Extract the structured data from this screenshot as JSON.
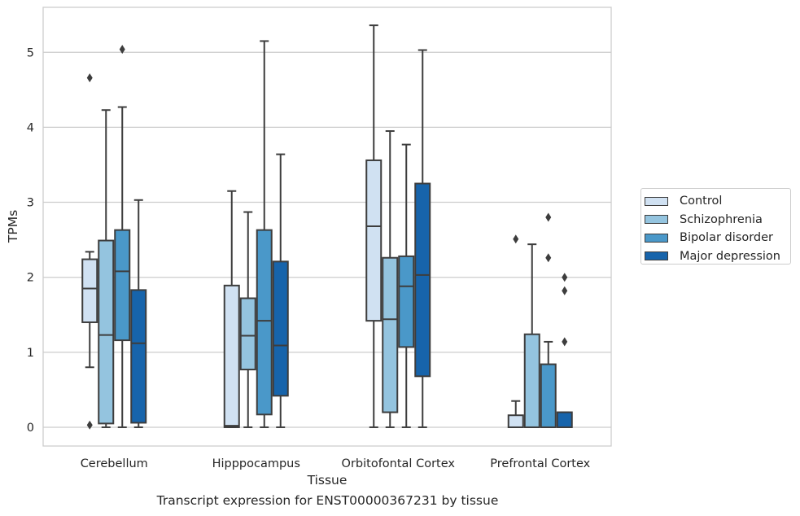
{
  "caption": "Transcript expression for ENST00000367231 by tissue",
  "chart_data": {
    "type": "boxplot",
    "xlabel": "Tissue",
    "ylabel": "TPMs",
    "ylim": [
      -0.25,
      5.6
    ],
    "yticks": [
      0,
      1,
      2,
      3,
      4,
      5
    ],
    "grid": "horizontal",
    "legend_position": "right",
    "categories": [
      "Cerebellum",
      "Hipppocampus",
      "Orbitofontal Cortex",
      "Prefrontal Cortex"
    ],
    "series": [
      {
        "name": "Control",
        "color": "#d0e1f2",
        "boxes": [
          {
            "whislo": 0.8,
            "q1": 1.4,
            "med": 1.85,
            "q3": 2.24,
            "whishi": 2.34,
            "fliers": [
              4.66,
              0.03
            ]
          },
          {
            "whislo": 0.0,
            "q1": 0.0,
            "med": 0.02,
            "q3": 1.89,
            "whishi": 3.15,
            "fliers": []
          },
          {
            "whislo": 0.0,
            "q1": 1.42,
            "med": 2.68,
            "q3": 3.56,
            "whishi": 5.36,
            "fliers": []
          },
          {
            "whislo": 0.0,
            "q1": 0.0,
            "med": 0.0,
            "q3": 0.16,
            "whishi": 0.35,
            "fliers": [
              2.51
            ]
          }
        ]
      },
      {
        "name": "Schizophrenia",
        "color": "#94c4df",
        "boxes": [
          {
            "whislo": 0.0,
            "q1": 0.05,
            "med": 1.23,
            "q3": 2.49,
            "whishi": 4.23,
            "fliers": []
          },
          {
            "whislo": 0.0,
            "q1": 0.77,
            "med": 1.22,
            "q3": 1.72,
            "whishi": 2.87,
            "fliers": []
          },
          {
            "whislo": 0.0,
            "q1": 0.2,
            "med": 1.44,
            "q3": 2.26,
            "whishi": 3.95,
            "fliers": []
          },
          {
            "whislo": 0.0,
            "q1": 0.0,
            "med": 0.0,
            "q3": 1.24,
            "whishi": 2.44,
            "fliers": []
          }
        ]
      },
      {
        "name": "Bipolar disorder",
        "color": "#4a98c9",
        "boxes": [
          {
            "whislo": 0.0,
            "q1": 1.16,
            "med": 2.08,
            "q3": 2.63,
            "whishi": 4.27,
            "fliers": [
              5.04
            ]
          },
          {
            "whislo": 0.0,
            "q1": 0.17,
            "med": 1.42,
            "q3": 2.63,
            "whishi": 5.15,
            "fliers": []
          },
          {
            "whislo": 0.0,
            "q1": 1.07,
            "med": 1.88,
            "q3": 2.28,
            "whishi": 3.77,
            "fliers": []
          },
          {
            "whislo": 0.0,
            "q1": 0.0,
            "med": 0.0,
            "q3": 0.84,
            "whishi": 1.14,
            "fliers": [
              2.8,
              2.26
            ]
          }
        ]
      },
      {
        "name": "Major depression",
        "color": "#1764ab",
        "boxes": [
          {
            "whislo": 0.0,
            "q1": 0.06,
            "med": 1.12,
            "q3": 1.83,
            "whishi": 3.03,
            "fliers": []
          },
          {
            "whislo": 0.0,
            "q1": 0.42,
            "med": 1.09,
            "q3": 2.21,
            "whishi": 3.64,
            "fliers": []
          },
          {
            "whislo": 0.0,
            "q1": 0.68,
            "med": 2.03,
            "q3": 3.25,
            "whishi": 5.03,
            "fliers": []
          },
          {
            "whislo": 0.0,
            "q1": 0.0,
            "med": 0.0,
            "q3": 0.2,
            "whishi": 0.2,
            "fliers": [
              2.0,
              1.82,
              1.14
            ]
          }
        ]
      }
    ]
  }
}
